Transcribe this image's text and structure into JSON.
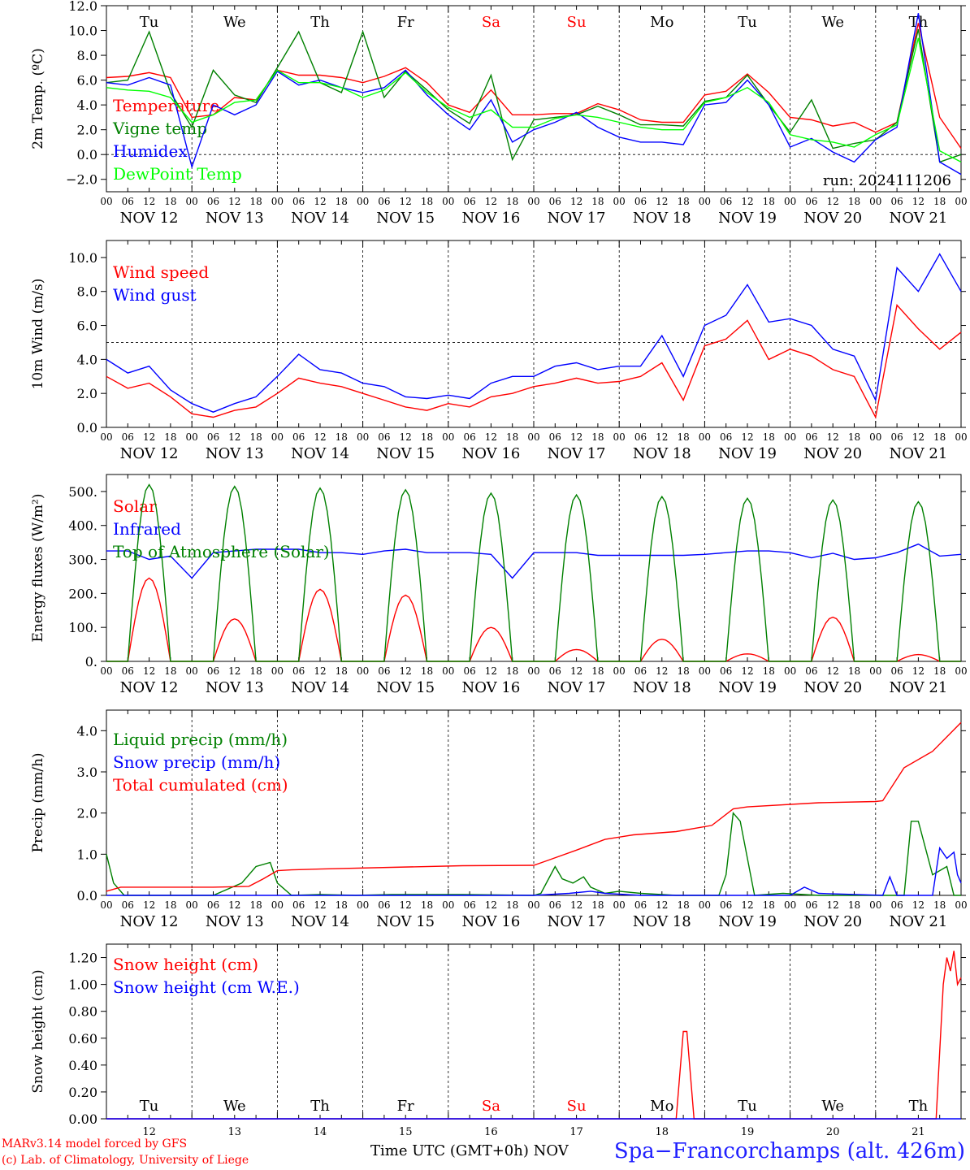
{
  "footer": {
    "credit_line1": "MARv3.14 model forced by GFS",
    "credit_line2": "(c) Lab. of Climatology, University of Liege",
    "x_title": "Time UTC (GMT+0h) NOV",
    "station": "Spa−Francorchamps (alt. 426m)"
  },
  "colors": {
    "red": "#ff0000",
    "green": "#008000",
    "blue": "#0000ff",
    "lime": "#00ff00",
    "text": "#000000"
  },
  "chart_data": [
    {
      "type": "line",
      "id": "temp",
      "ylabel": "2m Temp. (ºC)",
      "ylim": [
        -3,
        12
      ],
      "yticks": [
        -2,
        0,
        2,
        4,
        6,
        8,
        10,
        12
      ],
      "ytick_labels": [
        "−2.0",
        "0.0",
        "2.0",
        "4.0",
        "6.0",
        "8.0",
        "10.0",
        "12.0"
      ],
      "ref_line": 0,
      "annotation": "run: 2024111206",
      "weekdays": [
        "Tu",
        "We",
        "Th",
        "Fr",
        "Sa",
        "Su",
        "Mo",
        "Tu",
        "We",
        "Th"
      ],
      "weekend_days": [
        4,
        5
      ],
      "x_start": 0,
      "x_end": 240,
      "series": [
        {
          "name": "Temperature",
          "color": "#ff0000",
          "x": [
            0,
            6,
            12,
            18,
            24,
            30,
            36,
            42,
            48,
            54,
            60,
            66,
            72,
            78,
            84,
            90,
            96,
            102,
            108,
            114,
            120,
            126,
            132,
            138,
            144,
            150,
            156,
            162,
            168,
            174,
            180,
            186,
            192,
            198,
            204,
            210,
            216,
            222,
            228,
            234,
            240
          ],
          "y": [
            6.2,
            6.3,
            6.6,
            6.2,
            3.0,
            3.2,
            4.6,
            4.4,
            6.8,
            6.4,
            6.4,
            6.2,
            5.8,
            6.3,
            7.0,
            5.8,
            4.0,
            3.4,
            5.2,
            3.2,
            3.2,
            3.3,
            3.3,
            4.1,
            3.6,
            2.8,
            2.6,
            2.6,
            4.8,
            5.1,
            6.5,
            5.0,
            3.0,
            2.8,
            2.3,
            2.6,
            1.8,
            2.6,
            10.6,
            3.0,
            0.5
          ]
        },
        {
          "name": "Vigne temp",
          "color": "#008000",
          "x": [
            0,
            6,
            12,
            18,
            24,
            30,
            36,
            42,
            48,
            54,
            60,
            66,
            72,
            78,
            84,
            90,
            96,
            102,
            108,
            114,
            120,
            126,
            132,
            138,
            144,
            150,
            156,
            162,
            168,
            174,
            180,
            186,
            192,
            198,
            204,
            210,
            216,
            222,
            228,
            234,
            240
          ],
          "y": [
            5.8,
            6.0,
            9.9,
            5.0,
            2.2,
            6.8,
            4.8,
            4.2,
            7.0,
            9.9,
            5.8,
            5.0,
            9.9,
            4.6,
            6.7,
            5.2,
            3.6,
            2.5,
            6.4,
            -0.4,
            2.8,
            3.0,
            3.2,
            3.9,
            3.2,
            2.4,
            2.4,
            2.3,
            4.3,
            4.6,
            6.4,
            4.0,
            1.8,
            4.4,
            0.5,
            0.9,
            1.2,
            2.6,
            10.1,
            -0.6,
            0.0
          ]
        },
        {
          "name": "Humidex",
          "color": "#0000ff",
          "x": [
            0,
            6,
            12,
            18,
            24,
            30,
            36,
            42,
            48,
            54,
            60,
            66,
            72,
            78,
            84,
            90,
            96,
            102,
            108,
            114,
            120,
            126,
            132,
            138,
            144,
            150,
            156,
            162,
            168,
            174,
            180,
            186,
            192,
            198,
            204,
            210,
            216,
            222,
            228,
            234,
            240
          ],
          "y": [
            5.8,
            5.6,
            6.2,
            5.6,
            -1.0,
            4.0,
            3.2,
            4.0,
            6.7,
            5.6,
            6.0,
            5.4,
            5.0,
            5.4,
            6.8,
            4.8,
            3.2,
            2.0,
            4.4,
            1.0,
            2.0,
            2.6,
            3.4,
            2.2,
            1.4,
            1.0,
            1.0,
            0.8,
            4.0,
            4.2,
            6.0,
            4.0,
            0.6,
            1.3,
            0.2,
            -0.6,
            1.2,
            2.2,
            11.4,
            -0.6,
            -1.6
          ]
        },
        {
          "name": "DewPoint Temp",
          "color": "#00ff00",
          "x": [
            0,
            6,
            12,
            18,
            24,
            30,
            36,
            42,
            48,
            54,
            60,
            66,
            72,
            78,
            84,
            90,
            96,
            102,
            108,
            114,
            120,
            126,
            132,
            138,
            144,
            150,
            156,
            162,
            168,
            174,
            180,
            186,
            192,
            198,
            204,
            210,
            216,
            222,
            228,
            234,
            240
          ],
          "y": [
            5.4,
            5.2,
            5.1,
            4.6,
            2.6,
            3.2,
            4.2,
            4.4,
            6.8,
            5.8,
            5.8,
            5.4,
            4.6,
            5.2,
            6.6,
            5.0,
            3.8,
            3.0,
            3.6,
            2.2,
            2.2,
            2.9,
            3.2,
            3.0,
            2.6,
            2.2,
            2.0,
            2.0,
            4.2,
            4.6,
            5.4,
            4.2,
            1.6,
            1.2,
            1.0,
            0.6,
            1.6,
            2.4,
            9.4,
            0.3,
            -0.6
          ]
        }
      ]
    },
    {
      "type": "line",
      "id": "wind",
      "ylabel": "10m Wind (m/s)",
      "ylim": [
        0,
        11
      ],
      "yticks": [
        0,
        2,
        4,
        6,
        8,
        10
      ],
      "ytick_labels": [
        "0.0",
        "2.0",
        "4.0",
        "6.0",
        "8.0",
        "10.0"
      ],
      "ref_line": 5,
      "x_start": 0,
      "x_end": 240,
      "series": [
        {
          "name": "Wind speed",
          "color": "#ff0000",
          "x": [
            0,
            6,
            12,
            18,
            24,
            30,
            36,
            42,
            48,
            54,
            60,
            66,
            72,
            78,
            84,
            90,
            96,
            102,
            108,
            114,
            120,
            126,
            132,
            138,
            144,
            150,
            156,
            162,
            168,
            174,
            180,
            186,
            192,
            198,
            204,
            210,
            216,
            222,
            228,
            234,
            240
          ],
          "y": [
            3.0,
            2.3,
            2.6,
            1.8,
            0.8,
            0.6,
            1.0,
            1.2,
            2.0,
            2.9,
            2.6,
            2.4,
            2.0,
            1.6,
            1.2,
            1.0,
            1.4,
            1.2,
            1.8,
            2.0,
            2.4,
            2.6,
            2.9,
            2.6,
            2.7,
            3.0,
            3.8,
            1.6,
            4.8,
            5.2,
            6.3,
            4.0,
            4.6,
            4.2,
            3.4,
            3.0,
            0.6,
            7.2,
            5.8,
            4.6,
            5.6
          ]
        },
        {
          "name": "Wind gust",
          "color": "#0000ff",
          "x": [
            0,
            6,
            12,
            18,
            24,
            30,
            36,
            42,
            48,
            54,
            60,
            66,
            72,
            78,
            84,
            90,
            96,
            102,
            108,
            114,
            120,
            126,
            132,
            138,
            144,
            150,
            156,
            162,
            168,
            174,
            180,
            186,
            192,
            198,
            204,
            210,
            216,
            222,
            228,
            234,
            240
          ],
          "y": [
            4.0,
            3.2,
            3.6,
            2.2,
            1.4,
            0.9,
            1.4,
            1.8,
            3.0,
            4.3,
            3.4,
            3.2,
            2.6,
            2.4,
            1.8,
            1.7,
            1.9,
            1.7,
            2.6,
            3.0,
            3.0,
            3.6,
            3.8,
            3.4,
            3.6,
            3.6,
            5.4,
            3.0,
            6.0,
            6.6,
            8.4,
            6.2,
            6.4,
            6.0,
            4.6,
            4.2,
            1.6,
            9.4,
            8.0,
            10.2,
            8.0
          ]
        }
      ]
    },
    {
      "type": "line",
      "id": "energy",
      "ylabel": "Energy fluxes (W/m²)",
      "ylim": [
        0,
        550
      ],
      "yticks": [
        0,
        100,
        200,
        300,
        400,
        500
      ],
      "ytick_labels": [
        "0.",
        "100.",
        "200.",
        "300.",
        "400.",
        "500."
      ],
      "x_start": 0,
      "x_end": 240,
      "series": [
        {
          "name": "Solar",
          "color": "#ff0000",
          "peaks": [
            245,
            125,
            212,
            195,
            100,
            35,
            65,
            22,
            130,
            20
          ]
        },
        {
          "name": "Infrared",
          "color": "#0000ff",
          "x": [
            0,
            6,
            12,
            18,
            24,
            30,
            36,
            42,
            48,
            54,
            60,
            66,
            72,
            78,
            84,
            90,
            96,
            102,
            108,
            114,
            120,
            126,
            132,
            138,
            144,
            150,
            156,
            162,
            168,
            174,
            180,
            186,
            192,
            198,
            204,
            210,
            216,
            222,
            228,
            234,
            240
          ],
          "y": [
            325,
            325,
            300,
            310,
            245,
            320,
            325,
            330,
            330,
            330,
            320,
            320,
            315,
            325,
            330,
            320,
            320,
            320,
            315,
            245,
            320,
            320,
            320,
            312,
            312,
            312,
            312,
            312,
            315,
            320,
            325,
            325,
            320,
            305,
            318,
            300,
            305,
            320,
            345,
            310,
            315
          ]
        },
        {
          "name": "Top of Atmosphere (Solar)",
          "color": "#008000",
          "peaks": [
            520,
            515,
            510,
            505,
            495,
            490,
            485,
            480,
            475,
            470
          ]
        }
      ]
    },
    {
      "type": "line",
      "id": "precip",
      "ylabel": "Precip (mm/h)",
      "ylim": [
        0,
        4.5
      ],
      "yticks": [
        0,
        1,
        2,
        3,
        4
      ],
      "ytick_labels": [
        "0.0",
        "1.0",
        "2.0",
        "3.0",
        "4.0"
      ],
      "x_start": 0,
      "x_end": 240,
      "series": [
        {
          "name": "Liquid precip (mm/h)",
          "color": "#008000",
          "x": [
            0,
            2,
            5,
            10,
            20,
            30,
            38,
            42,
            46,
            48,
            52,
            60,
            70,
            80,
            100,
            120,
            122,
            126,
            128,
            131,
            134,
            136,
            140,
            144,
            150,
            160,
            172,
            174,
            176,
            178,
            182,
            190,
            200,
            218,
            224,
            226,
            228,
            232,
            236,
            238,
            240
          ],
          "y": [
            1.0,
            0.3,
            0.0,
            0.0,
            0.0,
            0.0,
            0.3,
            0.7,
            0.8,
            0.3,
            0.0,
            0.02,
            0.0,
            0.02,
            0.02,
            0.0,
            0.05,
            0.7,
            0.4,
            0.3,
            0.45,
            0.2,
            0.05,
            0.1,
            0.05,
            0.0,
            0.0,
            0.5,
            2.0,
            1.8,
            0.0,
            0.05,
            0.0,
            0.0,
            0.0,
            1.8,
            1.8,
            0.5,
            0.7,
            0.0,
            0.0
          ]
        },
        {
          "name": "Snow precip (mm/h)",
          "color": "#0000ff",
          "x": [
            0,
            120,
            130,
            136,
            140,
            150,
            160,
            192,
            196,
            200,
            218,
            220,
            222,
            232,
            234,
            236,
            238,
            239,
            240
          ],
          "y": [
            0.0,
            0.0,
            0.05,
            0.1,
            0.05,
            0.0,
            0.0,
            0.0,
            0.2,
            0.05,
            0.0,
            0.45,
            0.0,
            0.0,
            1.15,
            0.9,
            1.05,
            0.5,
            0.3
          ]
        },
        {
          "name": "Total cumulated (cm)",
          "color": "#ff0000",
          "x": [
            0,
            4,
            10,
            20,
            30,
            40,
            44,
            48,
            52,
            60,
            80,
            100,
            120,
            124,
            132,
            140,
            148,
            160,
            170,
            176,
            180,
            200,
            216,
            218,
            224,
            232,
            240
          ],
          "y": [
            0.1,
            0.2,
            0.2,
            0.2,
            0.2,
            0.22,
            0.4,
            0.6,
            0.62,
            0.64,
            0.68,
            0.72,
            0.73,
            0.85,
            1.1,
            1.36,
            1.47,
            1.55,
            1.7,
            2.1,
            2.15,
            2.25,
            2.28,
            2.3,
            3.1,
            3.5,
            4.2
          ]
        }
      ]
    },
    {
      "type": "line",
      "id": "snow",
      "ylabel": "Snow height (cm)",
      "ylim": [
        0,
        1.3
      ],
      "yticks": [
        0,
        0.2,
        0.4,
        0.6,
        0.8,
        1.0,
        1.2
      ],
      "ytick_labels": [
        "0.00",
        "0.20",
        "0.40",
        "0.60",
        "0.80",
        "1.00",
        "1.20"
      ],
      "weekdays": [
        "Tu",
        "We",
        "Th",
        "Fr",
        "Sa",
        "Su",
        "Mo",
        "Tu",
        "We",
        "Th"
      ],
      "weekend_days": [
        4,
        5
      ],
      "day_numbers": [
        "12",
        "13",
        "14",
        "15",
        "16",
        "17",
        "18",
        "19",
        "20",
        "21"
      ],
      "x_start": 0,
      "x_end": 240,
      "series": [
        {
          "name": "Snow height (cm)",
          "color": "#ff0000",
          "x": [
            0,
            160,
            162,
            163,
            165,
            167,
            233,
            234,
            235,
            236,
            237,
            238,
            239,
            240
          ],
          "y": [
            0,
            0,
            0.65,
            0.65,
            0,
            0,
            0,
            0.5,
            1.0,
            1.2,
            1.1,
            1.25,
            1.0,
            1.05
          ]
        },
        {
          "name": "Snow height (cm W.E.)",
          "color": "#0000ff",
          "x": [
            0,
            240
          ],
          "y": [
            0,
            0
          ]
        }
      ]
    }
  ],
  "x_axis": {
    "hour_labels": [
      "00",
      "06",
      "12",
      "18"
    ],
    "day_labels": [
      "NOV 12",
      "NOV 13",
      "NOV 14",
      "NOV 15",
      "NOV 16",
      "NOV 17",
      "NOV 18",
      "NOV 19",
      "NOV 20",
      "NOV 21"
    ]
  }
}
